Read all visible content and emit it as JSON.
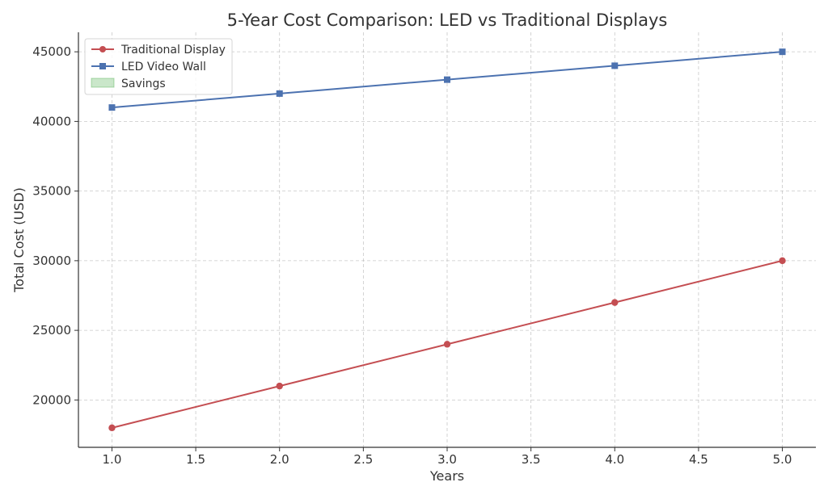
{
  "chart_data": {
    "type": "line",
    "title": "5-Year Cost Comparison: LED vs Traditional Displays",
    "xlabel": "Years",
    "ylabel": "Total Cost (USD)",
    "x": [
      1,
      2,
      3,
      4,
      5
    ],
    "xlim": [
      0.8,
      5.2
    ],
    "ylim": [
      16600,
      46400
    ],
    "xticks": [
      "1.0",
      "1.5",
      "2.0",
      "2.5",
      "3.0",
      "3.5",
      "4.0",
      "4.5",
      "5.0"
    ],
    "xtick_values": [
      1.0,
      1.5,
      2.0,
      2.5,
      3.0,
      3.5,
      4.0,
      4.5,
      5.0
    ],
    "yticks": [
      "20000",
      "25000",
      "30000",
      "35000",
      "40000",
      "45000"
    ],
    "ytick_values": [
      20000,
      25000,
      30000,
      35000,
      40000,
      45000
    ],
    "grid": true,
    "legend_position": "top-left",
    "series": [
      {
        "name": "Traditional Display",
        "color": "#c44e52",
        "marker": "circle",
        "values": [
          18000,
          21000,
          24000,
          27000,
          30000
        ]
      },
      {
        "name": "LED Video Wall",
        "color": "#4c72b0",
        "marker": "square",
        "values": [
          41000,
          42000,
          43000,
          44000,
          45000
        ]
      }
    ],
    "fill": {
      "name": "Savings",
      "color": "#2ca02c",
      "opacity": 0.25
    },
    "colors": {
      "axis": "#333333",
      "grid": "#b0b0b0",
      "text": "#333333"
    }
  }
}
